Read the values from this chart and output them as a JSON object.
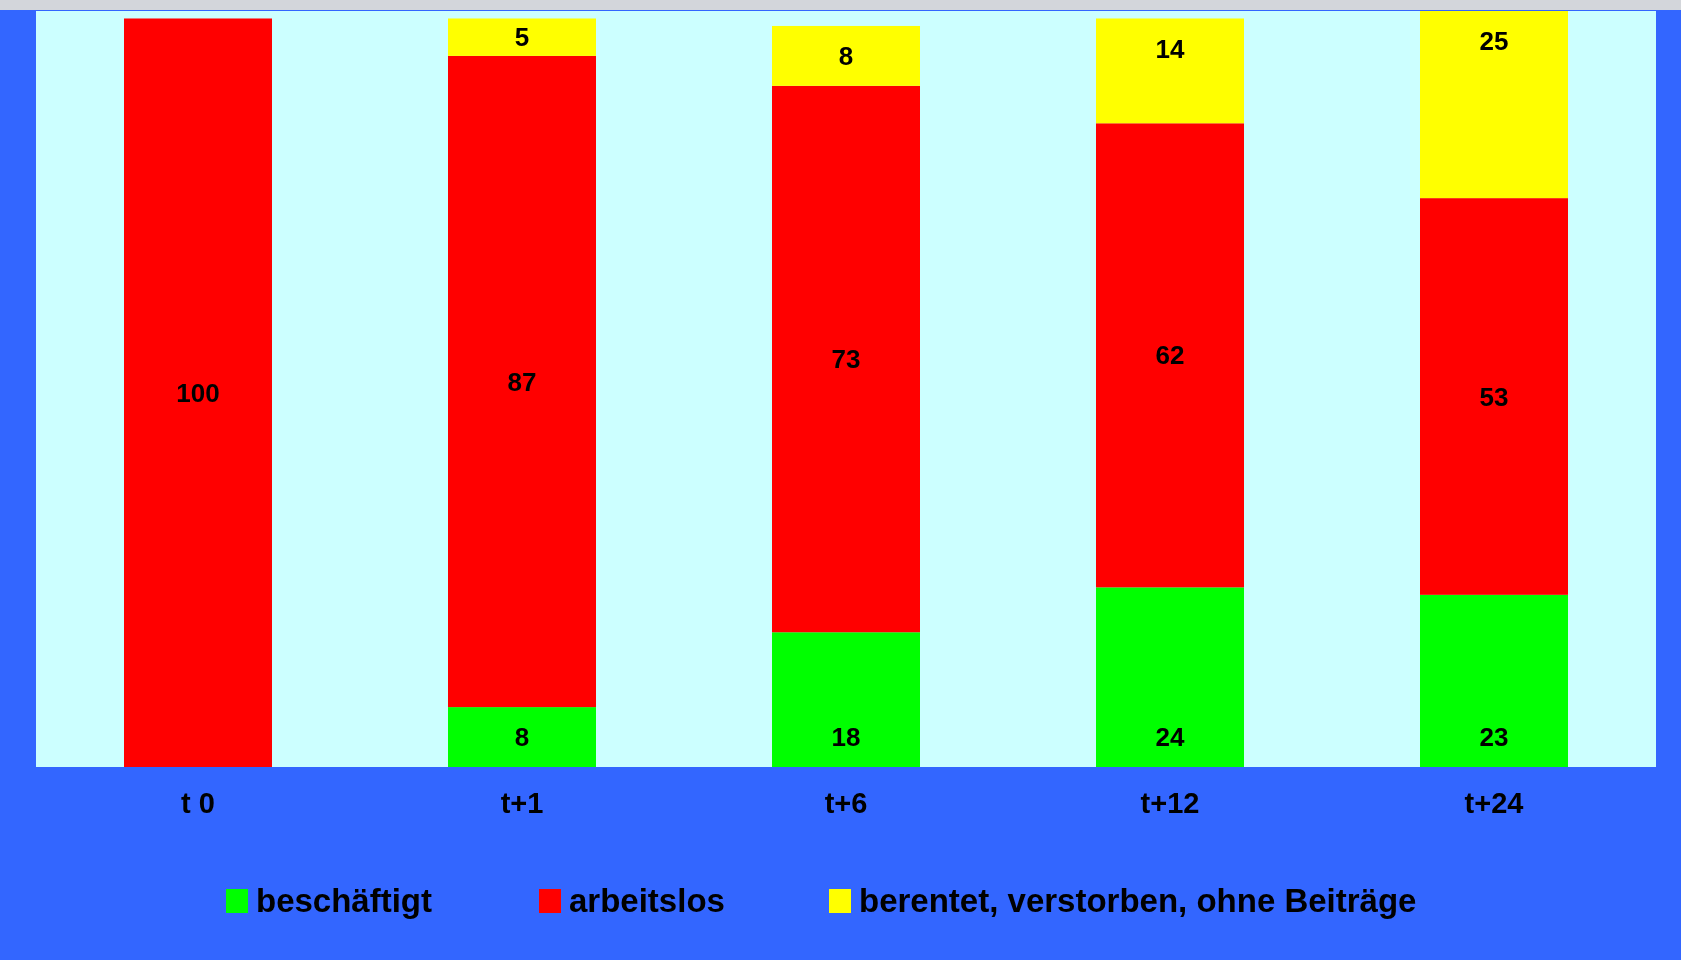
{
  "chart_data": {
    "type": "bar",
    "stacked": true,
    "categories": [
      "t 0",
      "t+1",
      "t+6",
      "t+12",
      "t+24"
    ],
    "ylim": [
      0,
      101
    ],
    "tick_labels": "x",
    "legend": "bottom",
    "series": [
      {
        "name": "beschäftigt",
        "color": "#00ff00",
        "values": [
          0,
          8,
          18,
          24,
          23
        ],
        "value_labels": [
          null,
          "8",
          "18",
          "24",
          "23"
        ]
      },
      {
        "name": "arbeitslos",
        "color": "#ff0000",
        "values": [
          100,
          87,
          73,
          62,
          53
        ],
        "value_labels": [
          "100",
          "87",
          "73",
          "62",
          "53"
        ]
      },
      {
        "name": "berentet, verstorben, ohne Beiträge",
        "color": "#ffff00",
        "values": [
          0,
          5,
          8,
          14,
          25
        ],
        "value_labels": [
          null,
          "5",
          "8",
          "14",
          "25"
        ]
      }
    ]
  }
}
